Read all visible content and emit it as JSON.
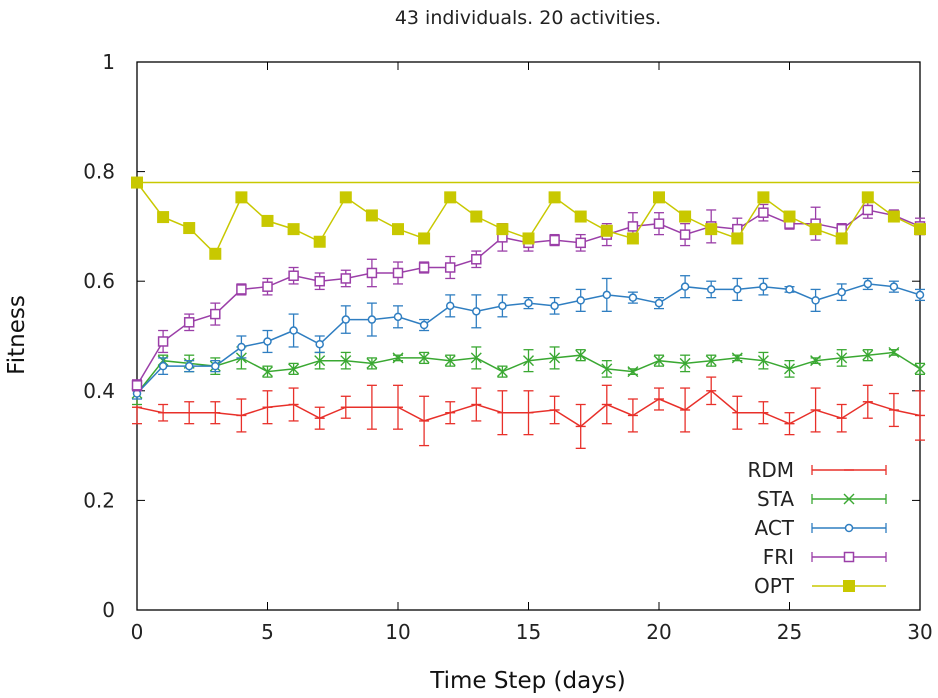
{
  "chart_data": {
    "type": "line",
    "title": "43 individuals. 20 activities.",
    "xlabel": "Time Step (days)",
    "ylabel": "Fitness",
    "xlim": [
      0,
      30
    ],
    "ylim": [
      0,
      1
    ],
    "xticks": [
      0,
      5,
      10,
      15,
      20,
      25,
      30
    ],
    "yticks": [
      0,
      0.2,
      0.4,
      0.6,
      0.8,
      1
    ],
    "grid": false,
    "legend_position": "bottom-right",
    "x": [
      0,
      1,
      2,
      3,
      4,
      5,
      6,
      7,
      8,
      9,
      10,
      11,
      12,
      13,
      14,
      15,
      16,
      17,
      18,
      19,
      20,
      21,
      22,
      23,
      24,
      25,
      26,
      27,
      28,
      29,
      30
    ],
    "reference_line": {
      "y": 0.78,
      "color": "#c8c800"
    },
    "series": [
      {
        "name": "RDM",
        "color": "#e8302a",
        "marker": "plus",
        "values": [
          0.37,
          0.36,
          0.36,
          0.36,
          0.355,
          0.37,
          0.375,
          0.35,
          0.37,
          0.37,
          0.37,
          0.345,
          0.36,
          0.375,
          0.36,
          0.36,
          0.365,
          0.335,
          0.375,
          0.355,
          0.385,
          0.365,
          0.4,
          0.36,
          0.36,
          0.34,
          0.365,
          0.35,
          0.38,
          0.365,
          0.355
        ],
        "errors": [
          0.03,
          0.015,
          0.02,
          0.02,
          0.03,
          0.03,
          0.03,
          0.02,
          0.02,
          0.04,
          0.04,
          0.045,
          0.02,
          0.03,
          0.04,
          0.04,
          0.025,
          0.04,
          0.035,
          0.03,
          0.02,
          0.04,
          0.025,
          0.03,
          0.02,
          0.02,
          0.04,
          0.025,
          0.03,
          0.03,
          0.045
        ]
      },
      {
        "name": "STA",
        "color": "#3aa832",
        "marker": "x",
        "values": [
          0.395,
          0.455,
          0.45,
          0.445,
          0.46,
          0.435,
          0.44,
          0.455,
          0.455,
          0.45,
          0.46,
          0.46,
          0.455,
          0.46,
          0.435,
          0.455,
          0.46,
          0.465,
          0.44,
          0.435,
          0.455,
          0.45,
          0.455,
          0.46,
          0.455,
          0.44,
          0.455,
          0.46,
          0.465,
          0.47,
          0.44
        ],
        "errors": [
          0.02,
          0.01,
          0.015,
          0.015,
          0.02,
          0.01,
          0.01,
          0.015,
          0.015,
          0.01,
          0.005,
          0.01,
          0.01,
          0.02,
          0.01,
          0.02,
          0.02,
          0.01,
          0.015,
          0.005,
          0.01,
          0.015,
          0.01,
          0.005,
          0.015,
          0.015,
          0.005,
          0.015,
          0.01,
          0.005,
          0.01
        ]
      },
      {
        "name": "ACT",
        "color": "#2f7ec1",
        "marker": "circle",
        "values": [
          0.395,
          0.445,
          0.445,
          0.445,
          0.48,
          0.49,
          0.51,
          0.485,
          0.53,
          0.53,
          0.535,
          0.52,
          0.555,
          0.545,
          0.555,
          0.56,
          0.555,
          0.565,
          0.575,
          0.57,
          0.56,
          0.59,
          0.585,
          0.585,
          0.59,
          0.585,
          0.565,
          0.58,
          0.595,
          0.59,
          0.575
        ],
        "errors": [
          0.01,
          0.015,
          0.01,
          0.01,
          0.02,
          0.02,
          0.03,
          0.015,
          0.025,
          0.03,
          0.02,
          0.01,
          0.02,
          0.03,
          0.02,
          0.01,
          0.015,
          0.02,
          0.03,
          0.01,
          0.01,
          0.02,
          0.015,
          0.02,
          0.015,
          0.005,
          0.02,
          0.015,
          0.01,
          0.01,
          0.01
        ]
      },
      {
        "name": "FRI",
        "color": "#9b3fa8",
        "marker": "square-open",
        "values": [
          0.41,
          0.49,
          0.525,
          0.54,
          0.585,
          0.59,
          0.61,
          0.6,
          0.605,
          0.615,
          0.615,
          0.625,
          0.625,
          0.64,
          0.68,
          0.67,
          0.675,
          0.67,
          0.685,
          0.7,
          0.705,
          0.685,
          0.7,
          0.695,
          0.725,
          0.705,
          0.705,
          0.695,
          0.73,
          0.72,
          0.7
        ],
        "errors": [
          0.01,
          0.02,
          0.015,
          0.02,
          0.01,
          0.015,
          0.015,
          0.015,
          0.015,
          0.025,
          0.02,
          0.01,
          0.02,
          0.015,
          0.025,
          0.015,
          0.01,
          0.015,
          0.02,
          0.025,
          0.02,
          0.02,
          0.03,
          0.02,
          0.015,
          0.01,
          0.03,
          0.01,
          0.015,
          0.01,
          0.015
        ]
      },
      {
        "name": "OPT",
        "color": "#c8c800",
        "marker": "square-filled",
        "values": [
          0.78,
          0.717,
          0.697,
          0.65,
          0.753,
          0.71,
          0.695,
          0.672,
          0.753,
          0.72,
          0.695,
          0.678,
          0.753,
          0.718,
          0.695,
          0.678,
          0.753,
          0.718,
          0.692,
          0.678,
          0.753,
          0.718,
          0.695,
          0.678,
          0.753,
          0.718,
          0.695,
          0.678,
          0.753,
          0.718,
          0.695
        ]
      }
    ]
  }
}
